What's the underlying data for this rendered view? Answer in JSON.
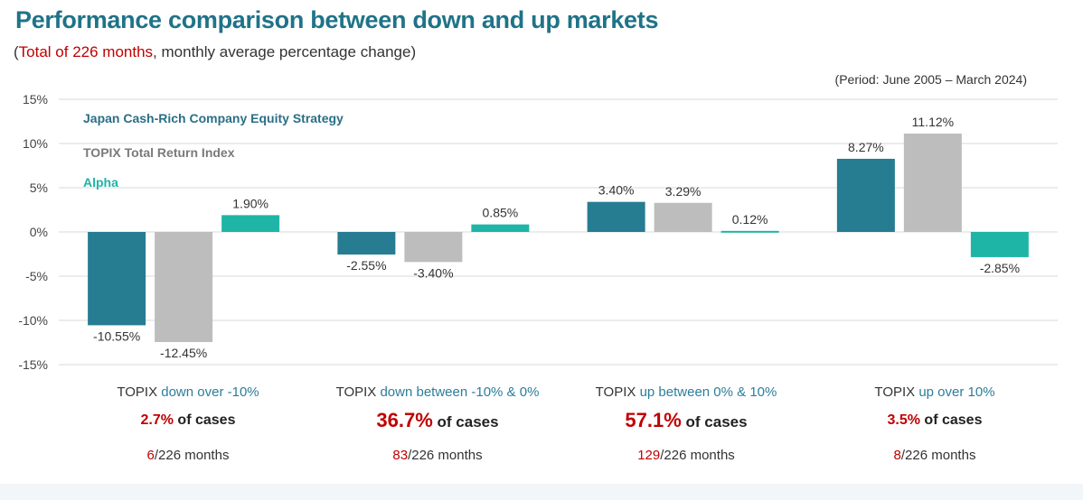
{
  "title": "Performance comparison between down and up markets",
  "subtitle": {
    "open": "(",
    "highlight": "Total of 226 months",
    "rest": ", monthly average percentage change)"
  },
  "period": "(Period: June 2005 – March 2024)",
  "colors": {
    "strategy": "#267c91",
    "topix": "#bdbdbd",
    "alpha": "#1fb5a6",
    "red": "#c00000"
  },
  "chart_data": {
    "type": "bar",
    "title": "Performance comparison between down and up markets",
    "ylim": [
      -15,
      15
    ],
    "yticks": [
      15,
      10,
      5,
      0,
      -5,
      -10,
      -15
    ],
    "ytick_labels": [
      "15%",
      "10%",
      "5%",
      "0%",
      "-5%",
      "-10%",
      "-15%"
    ],
    "grid": true,
    "legend_position": "top-left",
    "categories": [
      "TOPIX down over -10%",
      "TOPIX down between -10% & 0%",
      "TOPIX up between 0% & 10%",
      "TOPIX up over 10%"
    ],
    "series": [
      {
        "name": "Japan Cash-Rich Company Equity Strategy",
        "color": "#267c91",
        "values": [
          -10.55,
          -2.55,
          3.4,
          8.27
        ],
        "labels": [
          "-10.55%",
          "-2.55%",
          "3.40%",
          "8.27%"
        ]
      },
      {
        "name": "TOPIX Total Return Index",
        "color": "#bdbdbd",
        "values": [
          -12.45,
          -3.4,
          3.29,
          11.12
        ],
        "labels": [
          "-12.45%",
          "-3.40%",
          "3.29%",
          "11.12%"
        ]
      },
      {
        "name": "Alpha",
        "color": "#1fb5a6",
        "values": [
          1.9,
          0.85,
          0.12,
          -2.85
        ],
        "labels": [
          "1.90%",
          "0.85%",
          "0.12%",
          "-2.85%"
        ]
      }
    ]
  },
  "groups": [
    {
      "prefix": "TOPIX ",
      "desc": "down over -10%",
      "pct": "2.7%",
      "pct_suffix": " of cases",
      "months_num": "6",
      "months_rest": "/226 months"
    },
    {
      "prefix": "TOPIX ",
      "desc": "down between -10% & 0%",
      "pct": "36.7%",
      "pct_suffix": " of cases",
      "months_num": "83",
      "months_rest": "/226 months"
    },
    {
      "prefix": "TOPIX ",
      "desc": "up between 0% & 10%",
      "pct": "57.1%",
      "pct_suffix": " of cases",
      "months_num": "129",
      "months_rest": "/226 months"
    },
    {
      "prefix": "TOPIX ",
      "desc": "up over 10%",
      "pct": "3.5%",
      "pct_suffix": " of cases",
      "months_num": "8",
      "months_rest": "/226 months"
    }
  ]
}
